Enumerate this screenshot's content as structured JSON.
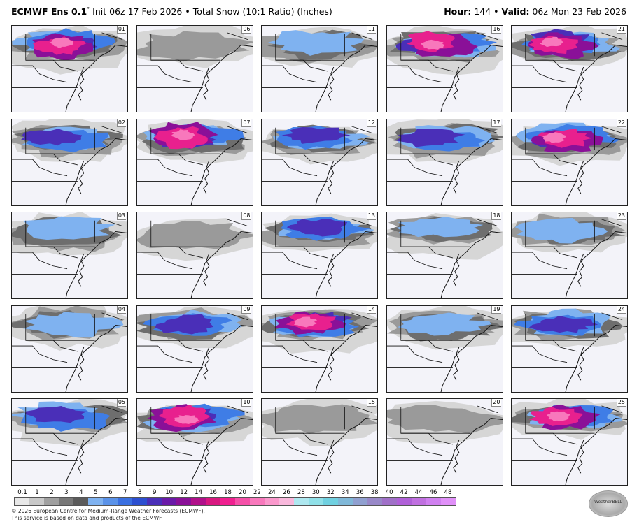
{
  "header": {
    "model": "ECMWF Ens 0.1",
    "degree": "°",
    "init_text": " Init 06z 17 Feb 2026 • Total Snow (10:1 Ratio) (Inches)",
    "hour_label": "Hour:",
    "hour_value": " 144 • ",
    "valid_label": "Valid:",
    "valid_value": " 06z Mon 23 Feb 2026"
  },
  "members": [
    "01",
    "02",
    "03",
    "04",
    "05",
    "06",
    "07",
    "08",
    "09",
    "10",
    "11",
    "12",
    "13",
    "14",
    "15",
    "16",
    "17",
    "18",
    "19",
    "20",
    "21",
    "22",
    "23",
    "24",
    "25"
  ],
  "member_snow_intensity": [
    3,
    2,
    1,
    1,
    2,
    0,
    3,
    0,
    2,
    3,
    1,
    2,
    2,
    3,
    0,
    3,
    2,
    1,
    1,
    0,
    3,
    3,
    1,
    2,
    3
  ],
  "colorbar": {
    "ticks": [
      "0.1",
      "1",
      "2",
      "3",
      "4",
      "5",
      "6",
      "7",
      "8",
      "9",
      "10",
      "12",
      "14",
      "16",
      "18",
      "20",
      "22",
      "24",
      "26",
      "28",
      "30",
      "32",
      "34",
      "36",
      "38",
      "40",
      "42",
      "44",
      "46",
      "48"
    ],
    "colors": [
      "#e8e8e8",
      "#c8c8c8",
      "#a0a0a0",
      "#787878",
      "#5b5b5b",
      "#7fb2f0",
      "#5a92e8",
      "#3a6fe0",
      "#2c4fd0",
      "#4a2fb8",
      "#6a1aa8",
      "#8a1098",
      "#b0108a",
      "#d81880",
      "#f02090",
      "#f550a8",
      "#f878bc",
      "#fa98cc",
      "#f9b8dc",
      "#aee8f0",
      "#90e0e8",
      "#70d0e0",
      "#80b8d8",
      "#90a0d0",
      "#9888c8",
      "#a070c8",
      "#b060d8",
      "#c070e0",
      "#d080f0",
      "#e090f8"
    ]
  },
  "footer": {
    "line1": "© 2026 European Centre for Medium-Range Weather Forecasts (ECMWF).",
    "line2": "This service is based on data and products of the ECMWF."
  },
  "logo_text": "WeatherBELL"
}
